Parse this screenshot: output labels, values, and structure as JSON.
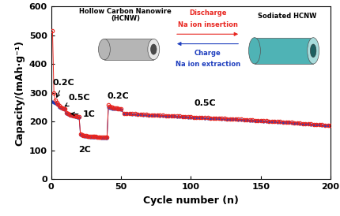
{
  "chart_data": {
    "type": "line",
    "x_label": "Cycle number (n)",
    "y_label": "Capacity/(mAh·g⁻¹)",
    "xlim": [
      0,
      200
    ],
    "xticks": [
      0,
      50,
      100,
      150,
      200
    ],
    "ylim": [
      0,
      600
    ],
    "yticks": [
      0,
      100,
      200,
      300,
      400,
      500,
      600
    ],
    "x": [
      1,
      2,
      3,
      4,
      5,
      6,
      7,
      8,
      9,
      10,
      11,
      12,
      13,
      14,
      15,
      16,
      17,
      18,
      19,
      20,
      21,
      22,
      23,
      24,
      25,
      26,
      27,
      28,
      29,
      30,
      31,
      32,
      33,
      34,
      35,
      36,
      37,
      38,
      39,
      40,
      41,
      42,
      43,
      44,
      45,
      46,
      47,
      48,
      49,
      50,
      52,
      54,
      56,
      58,
      60,
      62,
      64,
      66,
      68,
      70,
      72,
      74,
      76,
      78,
      80,
      82,
      84,
      86,
      88,
      90,
      92,
      94,
      96,
      98,
      100,
      102,
      104,
      106,
      108,
      110,
      112,
      114,
      116,
      118,
      120,
      122,
      124,
      126,
      128,
      130,
      132,
      134,
      136,
      138,
      140,
      142,
      144,
      146,
      148,
      150,
      152,
      154,
      156,
      158,
      160,
      162,
      164,
      166,
      168,
      170,
      172,
      174,
      176,
      178,
      180,
      182,
      184,
      186,
      188,
      190,
      192,
      194,
      196,
      198,
      200
    ],
    "series": [
      {
        "name": "Discharge",
        "color": "#e8251f",
        "marker": "o",
        "line_style": "solid",
        "values": [
          515,
          300,
          275,
          268,
          262,
          255,
          250,
          248,
          246,
          244,
          232,
          228,
          226,
          224,
          222,
          221,
          220,
          219,
          218,
          217,
          158,
          155,
          153,
          152,
          151,
          150,
          150,
          149,
          149,
          148,
          148,
          148,
          147,
          147,
          147,
          146,
          146,
          146,
          146,
          145,
          258,
          252,
          250,
          249,
          248,
          247,
          247,
          246,
          246,
          245,
          229,
          228,
          228,
          227,
          227,
          226,
          226,
          225,
          225,
          224,
          224,
          223,
          223,
          222,
          222,
          221,
          221,
          220,
          220,
          219,
          219,
          218,
          218,
          217,
          217,
          216,
          216,
          215,
          215,
          214,
          214,
          213,
          213,
          212,
          212,
          211,
          211,
          210,
          210,
          209,
          209,
          208,
          208,
          207,
          207,
          206,
          206,
          205,
          205,
          204,
          203,
          203,
          202,
          202,
          201,
          200,
          200,
          199,
          198,
          198,
          197,
          196,
          196,
          195,
          194,
          194,
          193,
          192,
          191,
          191,
          190,
          189,
          188,
          187,
          186
        ]
      },
      {
        "name": "Charge",
        "color": "#1f3fbf",
        "marker": "o",
        "line_style": "solid",
        "values": [
          270,
          268,
          265,
          262,
          258,
          250,
          247,
          245,
          244,
          242,
          228,
          225,
          223,
          222,
          220,
          219,
          218,
          217,
          216,
          215,
          155,
          153,
          151,
          150,
          149,
          148,
          148,
          147,
          147,
          146,
          146,
          146,
          145,
          145,
          145,
          144,
          144,
          144,
          144,
          143,
          250,
          248,
          247,
          246,
          246,
          245,
          245,
          244,
          244,
          243,
          228,
          227,
          227,
          226,
          226,
          225,
          225,
          224,
          224,
          223,
          223,
          222,
          222,
          221,
          221,
          220,
          220,
          219,
          219,
          218,
          218,
          217,
          217,
          216,
          216,
          215,
          215,
          214,
          214,
          213,
          213,
          212,
          212,
          211,
          211,
          210,
          210,
          209,
          209,
          208,
          208,
          207,
          207,
          206,
          206,
          205,
          205,
          204,
          204,
          203,
          202,
          202,
          201,
          201,
          200,
          199,
          199,
          198,
          197,
          197,
          196,
          195,
          195,
          194,
          193,
          193,
          192,
          191,
          190,
          190,
          189,
          188,
          187,
          186,
          185
        ]
      }
    ],
    "annotations": [
      "0.2C",
      "0.5C",
      "1C",
      "2C",
      "0.2C",
      "0.5C"
    ],
    "inset": {
      "left_title": "Hollow Carbon Nanowire\n(HCNW)",
      "right_title": "Sodiated HCNW",
      "top_texts": [
        "Discharge",
        "Na ion insertion"
      ],
      "bottom_texts": [
        "Charge",
        "Na ion extraction"
      ]
    }
  }
}
